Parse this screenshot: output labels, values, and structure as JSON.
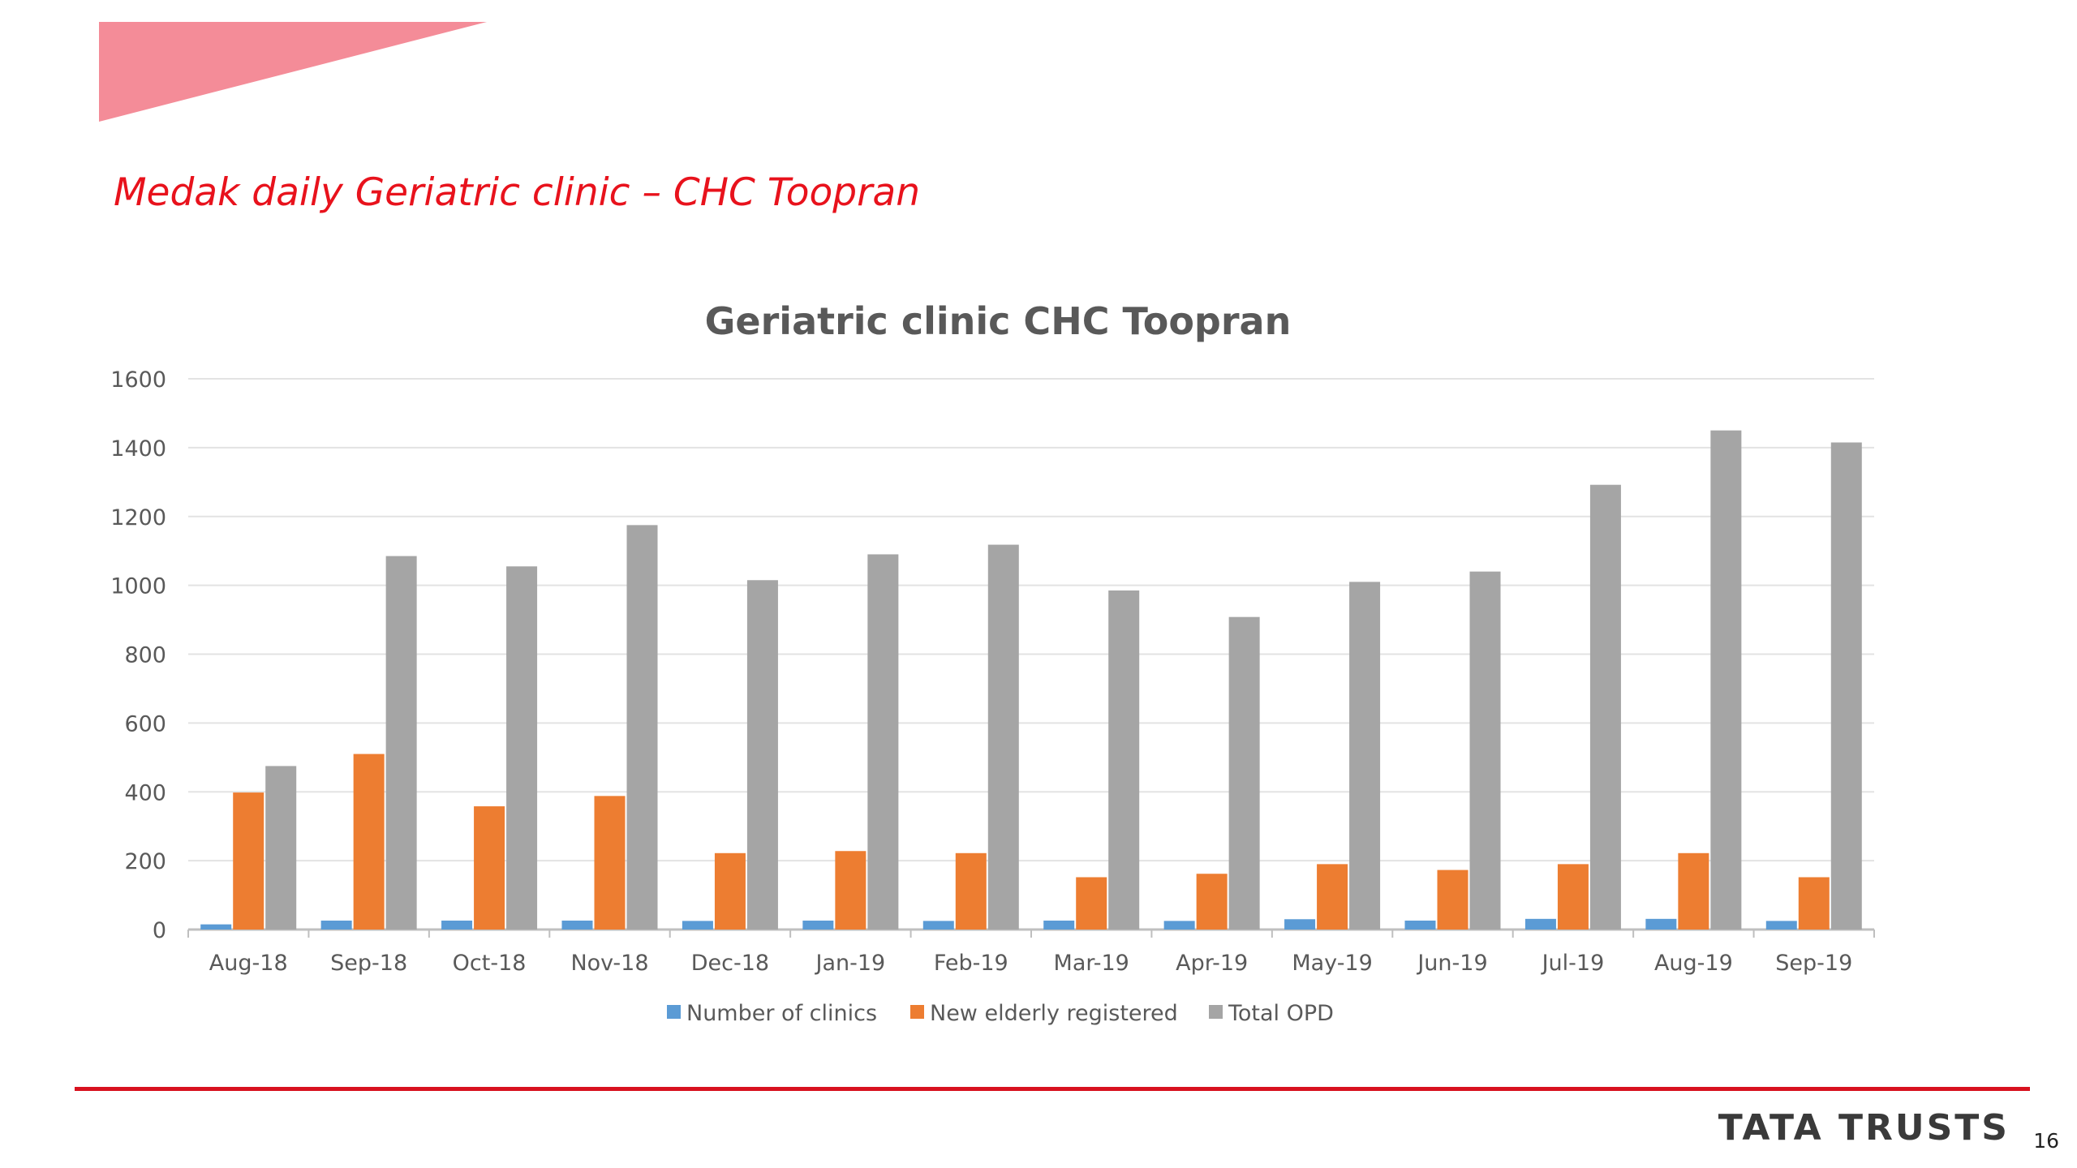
{
  "slide": {
    "title": "Medak daily Geriatric clinic – CHC Toopran",
    "logo_text": "TATA TRUSTS",
    "page_number": "16",
    "accent_color": "#e8121c"
  },
  "chart_data": {
    "type": "bar",
    "title": "Geriatric clinic CHC Toopran",
    "xlabel": "",
    "ylabel": "",
    "ylim": [
      0,
      1600
    ],
    "yticks": [
      0,
      200,
      400,
      600,
      800,
      1000,
      1200,
      1400,
      1600
    ],
    "grid": true,
    "legend_position": "bottom",
    "categories": [
      "Aug-18",
      "Sep-18",
      "Oct-18",
      "Nov-18",
      "Dec-18",
      "Jan-19",
      "Feb-19",
      "Mar-19",
      "Apr-19",
      "May-19",
      "Jun-19",
      "Jul-19",
      "Aug-19",
      "Sep-19"
    ],
    "series": [
      {
        "name": "Number of clinics",
        "color": "#5b9bd5",
        "values": [
          15,
          26,
          26,
          26,
          25,
          26,
          25,
          26,
          25,
          30,
          26,
          31,
          31,
          25
        ]
      },
      {
        "name": "New elderly registered",
        "color": "#ed7d31",
        "values": [
          398,
          510,
          358,
          388,
          222,
          228,
          222,
          152,
          162,
          190,
          173,
          190,
          222,
          152
        ]
      },
      {
        "name": "Total OPD",
        "color": "#a5a5a5",
        "values": [
          475,
          1085,
          1055,
          1175,
          1015,
          1090,
          1118,
          985,
          908,
          1010,
          1040,
          1292,
          1450,
          1415
        ]
      }
    ]
  }
}
